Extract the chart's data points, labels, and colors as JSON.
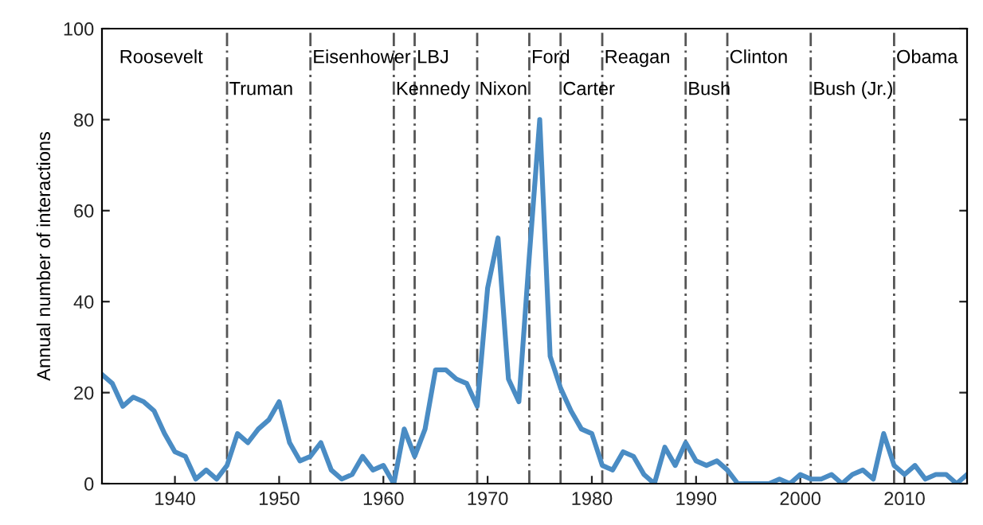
{
  "chart_data": {
    "type": "line",
    "ylabel": "Annual number of interactions",
    "x": [
      1933,
      1934,
      1935,
      1936,
      1937,
      1938,
      1939,
      1940,
      1941,
      1942,
      1943,
      1944,
      1945,
      1946,
      1947,
      1948,
      1949,
      1950,
      1951,
      1952,
      1953,
      1954,
      1955,
      1956,
      1957,
      1958,
      1959,
      1960,
      1961,
      1962,
      1963,
      1964,
      1965,
      1966,
      1967,
      1968,
      1969,
      1970,
      1971,
      1972,
      1973,
      1974,
      1975,
      1976,
      1977,
      1978,
      1979,
      1980,
      1981,
      1982,
      1983,
      1984,
      1985,
      1986,
      1987,
      1988,
      1989,
      1990,
      1991,
      1992,
      1993,
      1994,
      1995,
      1996,
      1997,
      1998,
      1999,
      2000,
      2001,
      2002,
      2003,
      2004,
      2005,
      2006,
      2007,
      2008,
      2009,
      2010,
      2011,
      2012,
      2013,
      2014,
      2015,
      2016
    ],
    "series": [
      {
        "color": "#4a8cc4",
        "values": [
          24,
          22,
          17,
          19,
          18,
          16,
          11,
          7,
          6,
          1,
          3,
          1,
          4,
          11,
          9,
          12,
          14,
          18,
          9,
          5,
          6,
          9,
          3,
          1,
          2,
          6,
          3,
          4,
          0,
          12,
          6,
          12,
          25,
          25,
          23,
          22,
          17,
          43,
          54,
          23,
          18,
          50,
          80,
          28,
          21,
          16,
          12,
          11,
          4,
          3,
          7,
          6,
          2,
          0,
          8,
          4,
          9,
          5,
          4,
          5,
          3,
          0,
          0,
          0,
          0,
          1,
          0,
          2,
          1,
          1,
          2,
          0,
          2,
          3,
          1,
          11,
          4,
          2,
          4,
          1,
          2,
          2,
          0,
          2
        ]
      }
    ],
    "xlim": [
      1933,
      2016
    ],
    "ylim": [
      0,
      100
    ],
    "xticks": [
      1940,
      1950,
      1960,
      1970,
      1980,
      1990,
      2000,
      2010
    ],
    "yticks": [
      0,
      20,
      40,
      60,
      80,
      100
    ],
    "grid": false,
    "legend": false,
    "marker": "none",
    "line_style": "solid",
    "ref_lines": [
      {
        "axis": "x",
        "value": 1945,
        "label": "Truman",
        "color": "#555555",
        "line_style": "dashed"
      },
      {
        "axis": "x",
        "value": 1953,
        "label": "Eisenhower",
        "color": "#555555",
        "line_style": "dashed"
      },
      {
        "axis": "x",
        "value": 1961,
        "label": "Kennedy",
        "color": "#555555",
        "line_style": "dashed"
      },
      {
        "axis": "x",
        "value": 1963,
        "label": "LBJ",
        "color": "#555555",
        "line_style": "dashed"
      },
      {
        "axis": "x",
        "value": 1969,
        "label": "Nixon",
        "color": "#555555",
        "line_style": "dashed"
      },
      {
        "axis": "x",
        "value": 1974,
        "label": "Ford",
        "color": "#555555",
        "line_style": "dashed"
      },
      {
        "axis": "x",
        "value": 1977,
        "label": "Carter",
        "color": "#555555",
        "line_style": "dashed"
      },
      {
        "axis": "x",
        "value": 1981,
        "label": "Reagan",
        "color": "#555555",
        "line_style": "dashed"
      },
      {
        "axis": "x",
        "value": 1989,
        "label": "Bush",
        "color": "#555555",
        "line_style": "dashed"
      },
      {
        "axis": "x",
        "value": 1993,
        "label": "Clinton",
        "color": "#555555",
        "line_style": "dashed"
      },
      {
        "axis": "x",
        "value": 2001,
        "label": "Bush (Jr.)",
        "color": "#555555",
        "line_style": "dashed"
      },
      {
        "axis": "x",
        "value": 2009,
        "label": "Obama",
        "color": "#555555",
        "line_style": "dashed"
      }
    ],
    "annotations": [
      "Roosevelt"
    ]
  }
}
